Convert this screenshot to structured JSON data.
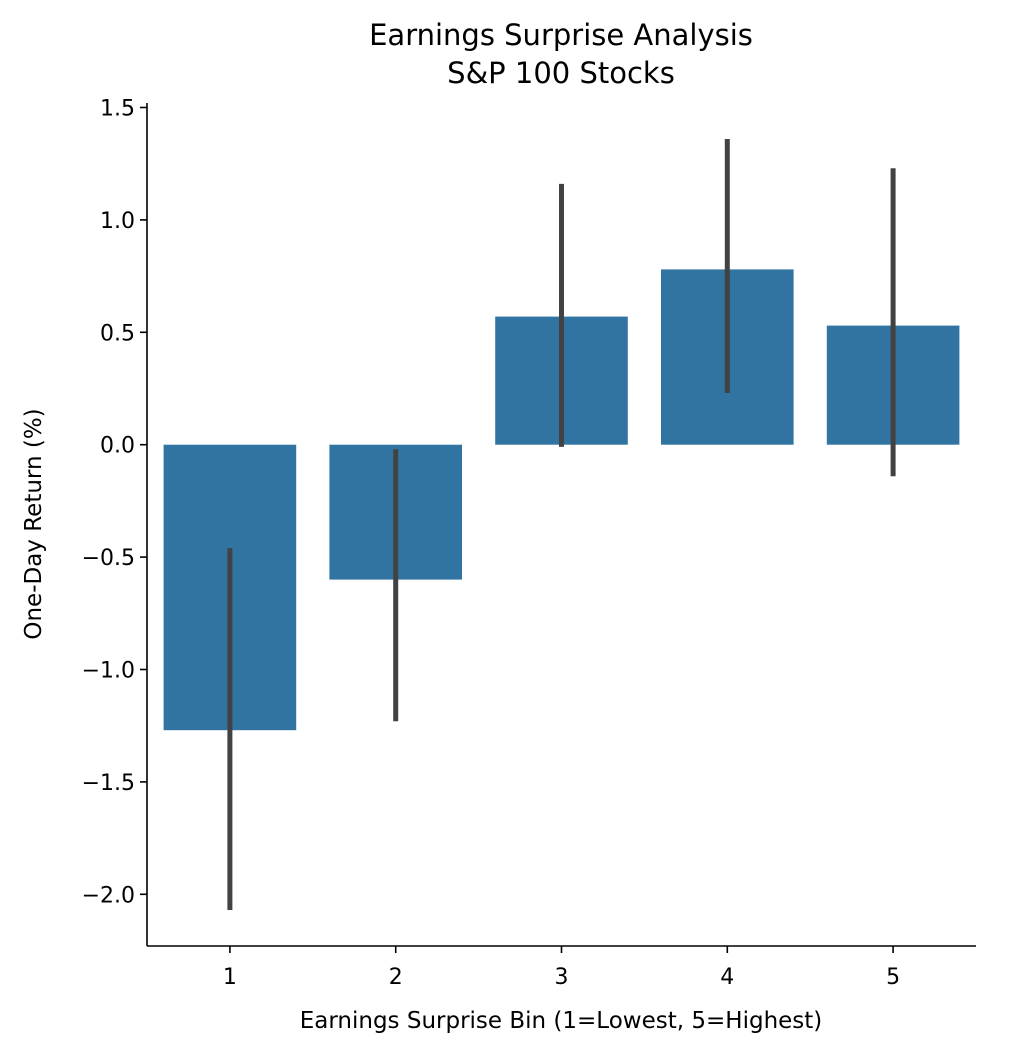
{
  "chart_data": {
    "type": "bar",
    "title": "Earnings Surprise Analysis",
    "subtitle": "S&P 100 Stocks",
    "xlabel": "Earnings Surprise Bin (1=Lowest, 5=Highest)",
    "ylabel": "One-Day Return (%)",
    "categories": [
      "1",
      "2",
      "3",
      "4",
      "5"
    ],
    "values": [
      -1.27,
      -0.6,
      0.57,
      0.78,
      0.53
    ],
    "error_low": [
      -2.07,
      -1.23,
      -0.01,
      0.23,
      -0.14
    ],
    "error_high": [
      -0.46,
      -0.02,
      1.16,
      1.36,
      1.23
    ],
    "ylim": [
      -2.23,
      1.52
    ],
    "yticks": [
      -2.0,
      -1.5,
      -1.0,
      -0.5,
      0.0,
      0.5,
      1.0,
      1.5
    ],
    "ytick_labels": [
      "−2.0",
      "−1.5",
      "−1.0",
      "−0.5",
      "0.0",
      "0.5",
      "1.0",
      "1.5"
    ],
    "grid": false,
    "colors": {
      "bar": "#3274a1",
      "error_bar": "#424242",
      "axis": "#000000"
    }
  }
}
